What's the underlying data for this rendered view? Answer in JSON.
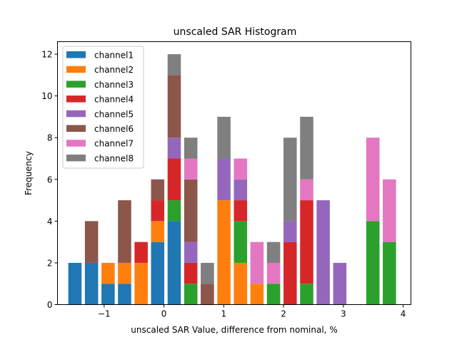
{
  "chart_data": {
    "type": "bar",
    "stacked": true,
    "title": "unscaled SAR Histogram",
    "xlabel": "unscaled SAR Value, difference from nominal, %",
    "ylabel": "Frequency",
    "xlim": [
      -1.78,
      4.13
    ],
    "ylim": [
      0,
      12.6
    ],
    "xticks": [
      -1,
      0,
      1,
      2,
      3,
      4
    ],
    "xtick_labels": [
      "−1",
      "0",
      "1",
      "2",
      "3",
      "4"
    ],
    "yticks": [
      0,
      2,
      4,
      6,
      8,
      10,
      12
    ],
    "ytick_labels": [
      "0",
      "2",
      "4",
      "6",
      "8",
      "10",
      "12"
    ],
    "grid": false,
    "legend_position": "top-left",
    "bin_width": 0.277,
    "bar_width_fraction": 0.8,
    "bin_centers": [
      -1.488,
      -1.211,
      -0.934,
      -0.658,
      -0.381,
      -0.105,
      0.172,
      0.449,
      0.726,
      1.003,
      1.28,
      1.556,
      1.833,
      2.11,
      2.387,
      2.663,
      2.94,
      3.217,
      3.494,
      3.77
    ],
    "series": [
      {
        "name": "channel1",
        "color": "#1f77b4",
        "values": [
          2,
          2,
          1,
          1,
          0,
          3,
          4,
          0,
          0,
          0,
          0,
          0,
          0,
          0,
          0,
          0,
          0,
          0,
          0,
          0
        ]
      },
      {
        "name": "channel2",
        "color": "#ff7f0e",
        "values": [
          0,
          0,
          1,
          1,
          2,
          1,
          0,
          0,
          0,
          5,
          2,
          1,
          0,
          0,
          0,
          0,
          0,
          0,
          0,
          0
        ]
      },
      {
        "name": "channel3",
        "color": "#2ca02c",
        "values": [
          0,
          0,
          0,
          0,
          0,
          0,
          1,
          1,
          0,
          0,
          2,
          0,
          1,
          0,
          1,
          0,
          0,
          0,
          4,
          3
        ]
      },
      {
        "name": "channel4",
        "color": "#d62728",
        "values": [
          0,
          0,
          0,
          0,
          1,
          1,
          2,
          1,
          0,
          0,
          1,
          0,
          0,
          3,
          4,
          0,
          0,
          0,
          0,
          0
        ]
      },
      {
        "name": "channel5",
        "color": "#9467bd",
        "values": [
          0,
          0,
          0,
          0,
          0,
          0,
          1,
          1,
          0,
          2,
          1,
          0,
          0,
          1,
          0,
          5,
          2,
          0,
          0,
          0
        ]
      },
      {
        "name": "channel6",
        "color": "#8c564b",
        "values": [
          0,
          2,
          0,
          3,
          0,
          1,
          3,
          3,
          1,
          0,
          0,
          0,
          0,
          0,
          0,
          0,
          0,
          0,
          0,
          0
        ]
      },
      {
        "name": "channel7",
        "color": "#e377c2",
        "values": [
          0,
          0,
          0,
          0,
          0,
          0,
          0,
          1,
          0,
          0,
          1,
          2,
          1,
          0,
          1,
          0,
          0,
          0,
          4,
          3
        ]
      },
      {
        "name": "channel8",
        "color": "#7f7f7f",
        "values": [
          0,
          0,
          0,
          0,
          0,
          0,
          1,
          1,
          1,
          2,
          0,
          0,
          1,
          4,
          3,
          0,
          0,
          0,
          0,
          0
        ]
      }
    ]
  }
}
